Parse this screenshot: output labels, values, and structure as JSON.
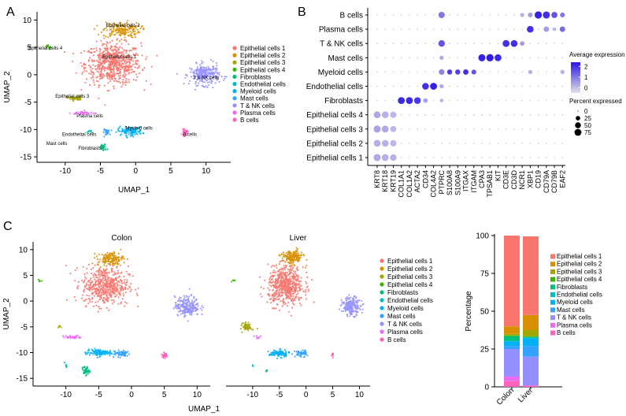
{
  "panel_labels": [
    "A",
    "B",
    "C"
  ],
  "colors": {
    "Epithelial cells 1": "#f8766d",
    "Epithelial cells 2": "#d89000",
    "Epithelial cells 3": "#a3a500",
    "Epithelial cells 4": "#39b600",
    "Fibroblasts": "#00bf7d",
    "Endothelial cells": "#00bfc4",
    "Myeloid cells": "#00b0f6",
    "Mast cells": "#35a2ff",
    "T & NK cells": "#9590ff",
    "Plasma cells": "#e76bf3",
    "B cells": "#ff62bc"
  },
  "chart_data": [
    {
      "type": "scatter",
      "panel": "A",
      "xlabel": "UMAP_1",
      "ylabel": "UMAP_2",
      "xlim": [
        -14,
        13.5
      ],
      "ylim": [
        -16,
        11.5
      ],
      "xticks": [
        -10,
        -5,
        0,
        5,
        10
      ],
      "yticks": [
        -15,
        -10,
        -5,
        0,
        5,
        10
      ],
      "legend": [
        "Epithelial cells 1",
        "Epithelial cells 2",
        "Epithelial cells 3",
        "Epithelial cells 4",
        "Fibroblasts",
        "Endothelial cells",
        "Myeloid cells",
        "Mast cells",
        "T & NK cells",
        "Plasma cells",
        "B cells"
      ],
      "cluster_labels": [
        {
          "text": "Epithelial cells 2",
          "x": -1.8,
          "y": 8.8
        },
        {
          "text": "Epithelial cells 4",
          "x": -12.8,
          "y": 4.6
        },
        {
          "text": "Epithelial cells 1",
          "x": -2.3,
          "y": 3.0
        },
        {
          "text": "T & NK cells",
          "x": 10.0,
          "y": -0.8
        },
        {
          "text": "Epithelial cells 3",
          "x": -9.0,
          "y": -4.2
        },
        {
          "text": "Plasma cells",
          "x": -6.5,
          "y": -7.8
        },
        {
          "text": "Myeloid cells",
          "x": 0.5,
          "y": -10.0
        },
        {
          "text": "Endothelial cells",
          "x": -8.0,
          "y": -11.2
        },
        {
          "text": "B cells",
          "x": 7.7,
          "y": -11.2
        },
        {
          "text": "Mast cells",
          "x": -11.2,
          "y": -12.8
        },
        {
          "text": "Fibroblasts",
          "x": -6.5,
          "y": -13.7
        }
      ],
      "clusters": [
        {
          "name": "Epithelial cells 1",
          "cx": -3.2,
          "cy": 2.0,
          "sx": 3.6,
          "sy": 3.4,
          "n": 650
        },
        {
          "name": "Epithelial cells 2",
          "cx": -2.0,
          "cy": 8.2,
          "sx": 2.4,
          "sy": 1.3,
          "n": 170
        },
        {
          "name": "Epithelial cells 3",
          "cx": -8.6,
          "cy": -4.3,
          "sx": 1.0,
          "sy": 0.4,
          "n": 45
        },
        {
          "name": "Epithelial cells 4",
          "cx": -12.3,
          "cy": 5.0,
          "sx": 0.3,
          "sy": 0.4,
          "n": 12
        },
        {
          "name": "Fibroblasts",
          "cx": -4.6,
          "cy": -13.3,
          "sx": 0.5,
          "sy": 0.6,
          "n": 35
        },
        {
          "name": "Endothelial cells",
          "cx": -6.5,
          "cy": -10.3,
          "sx": 0.3,
          "sy": 0.3,
          "n": 8
        },
        {
          "name": "Myeloid cells",
          "cx": -0.8,
          "cy": -10.3,
          "sx": 1.6,
          "sy": 0.7,
          "n": 120
        },
        {
          "name": "Mast cells",
          "cx": -4.0,
          "cy": -10.5,
          "sx": 0.6,
          "sy": 0.5,
          "n": 25
        },
        {
          "name": "T & NK cells",
          "cx": 9.8,
          "cy": 0.0,
          "sx": 1.9,
          "sy": 1.7,
          "n": 260
        },
        {
          "name": "Plasma cells",
          "cx": -7.5,
          "cy": -7.0,
          "sx": 1.5,
          "sy": 0.35,
          "n": 40
        },
        {
          "name": "B cells",
          "cx": 7.0,
          "cy": -10.6,
          "sx": 0.35,
          "sy": 0.5,
          "n": 30
        }
      ]
    },
    {
      "type": "dotplot",
      "panel": "B",
      "genes": [
        "KRT8",
        "KRT18",
        "KRT19",
        "COL1A1",
        "COL1A2",
        "ACTA2",
        "CD34",
        "COL4A2",
        "PTPRC",
        "S100A8",
        "S100A9",
        "ITGAX",
        "ITGAM",
        "CPA3",
        "TPSAB1",
        "KIT",
        "CD3E",
        "CD3D",
        "NCR1",
        "XBP1",
        "CD19",
        "CD79A",
        "CD79B",
        "EAF2"
      ],
      "cell_types": [
        "B cells",
        "Plasma cells",
        "T & NK cells",
        "Mast cells",
        "Myeloid cells",
        "Endothelial cells",
        "Fibroblasts",
        "Epithelial cells 4",
        "Epithelial cells 3",
        "Epithelial cells 2",
        "Epithelial cells 1"
      ],
      "dots": {
        "B cells": [
          [
            8,
            60,
            1.0
          ],
          [
            18,
            20,
            0.2
          ],
          [
            19,
            30,
            0.5
          ],
          [
            20,
            85,
            2.2
          ],
          [
            21,
            80,
            2.0
          ],
          [
            22,
            55,
            1.5
          ],
          [
            23,
            30,
            1.0
          ]
        ],
        "Plasma cells": [
          [
            19,
            70,
            2.0
          ],
          [
            21,
            40,
            0.5
          ],
          [
            22,
            15,
            0.1
          ],
          [
            23,
            40,
            1.2
          ]
        ],
        "T & NK cells": [
          [
            8,
            65,
            1.5
          ],
          [
            16,
            75,
            2.0
          ],
          [
            17,
            70,
            2.0
          ],
          [
            18,
            25,
            0.5
          ]
        ],
        "Mast cells": [
          [
            8,
            20,
            0.3
          ],
          [
            13,
            80,
            2.2
          ],
          [
            14,
            85,
            2.3
          ],
          [
            15,
            75,
            2.1
          ]
        ],
        "Myeloid cells": [
          [
            8,
            45,
            0.8
          ],
          [
            9,
            35,
            1.8
          ],
          [
            10,
            35,
            1.8
          ],
          [
            11,
            40,
            2.0
          ],
          [
            12,
            30,
            1.5
          ],
          [
            19,
            20,
            0.2
          ],
          [
            23,
            20,
            0.2
          ]
        ],
        "Endothelial cells": [
          [
            6,
            70,
            2.0
          ],
          [
            7,
            75,
            2.2
          ],
          [
            8,
            20,
            0.3
          ]
        ],
        "Fibroblasts": [
          [
            3,
            75,
            2.1
          ],
          [
            4,
            75,
            2.1
          ],
          [
            5,
            70,
            1.9
          ],
          [
            6,
            25,
            0.4
          ],
          [
            8,
            15,
            0.1
          ]
        ],
        "Epithelial cells 4": [
          [
            0,
            75,
            0.3
          ],
          [
            1,
            70,
            0.2
          ],
          [
            2,
            60,
            0.1
          ]
        ],
        "Epithelial cells 3": [
          [
            0,
            80,
            0.4
          ],
          [
            1,
            75,
            0.3
          ],
          [
            2,
            55,
            0.1
          ]
        ],
        "Epithelial cells 2": [
          [
            0,
            75,
            0.2
          ],
          [
            1,
            70,
            0.2
          ],
          [
            2,
            60,
            0.1
          ]
        ],
        "Epithelial cells 1": [
          [
            0,
            80,
            0.3
          ],
          [
            1,
            75,
            0.2
          ],
          [
            2,
            65,
            0.2
          ]
        ]
      },
      "color_legend_title": "Average expression",
      "color_ticks": [
        2,
        1,
        0
      ],
      "color_range": [
        -0.5,
        2.4
      ],
      "size_legend_title": "Percent expressed",
      "size_values": [
        0,
        25,
        50,
        75
      ]
    },
    {
      "type": "scatter",
      "panel": "C-left",
      "title": "Colon",
      "ylabel": "UMAP_2",
      "xlim": [
        -15,
        12
      ],
      "ylim": [
        -16.5,
        11.5
      ],
      "xticks": [
        -10,
        -5,
        0,
        5,
        10
      ],
      "yticks": [
        -15,
        -10,
        -5,
        0,
        5,
        10
      ],
      "clusters": [
        {
          "name": "Epithelial cells 1",
          "cx": -4.0,
          "cy": 3.0,
          "sx": 3.2,
          "sy": 3.4,
          "n": 520
        },
        {
          "name": "Epithelial cells 2",
          "cx": -3.2,
          "cy": 8.2,
          "sx": 1.8,
          "sy": 1.2,
          "n": 140
        },
        {
          "name": "Epithelial cells 3",
          "cx": -11.0,
          "cy": -5.0,
          "sx": 0.3,
          "sy": 0.3,
          "n": 6
        },
        {
          "name": "Epithelial cells 4",
          "cx": -14.0,
          "cy": 4.0,
          "sx": 0.3,
          "sy": 0.3,
          "n": 6
        },
        {
          "name": "Fibroblasts",
          "cx": -7.0,
          "cy": -13.5,
          "sx": 0.5,
          "sy": 0.8,
          "n": 40
        },
        {
          "name": "Endothelial cells",
          "cx": -10.0,
          "cy": -12.5,
          "sx": 0.2,
          "sy": 0.3,
          "n": 6
        },
        {
          "name": "Myeloid cells",
          "cx": -5.0,
          "cy": -10.0,
          "sx": 1.8,
          "sy": 0.6,
          "n": 110
        },
        {
          "name": "Mast cells",
          "cx": -1.5,
          "cy": -10.2,
          "sx": 1.2,
          "sy": 0.6,
          "n": 55
        },
        {
          "name": "T & NK cells",
          "cx": 8.5,
          "cy": -1.0,
          "sx": 1.7,
          "sy": 1.7,
          "n": 220
        },
        {
          "name": "Plasma cells",
          "cx": -9.0,
          "cy": -7.0,
          "sx": 1.3,
          "sy": 0.3,
          "n": 35
        },
        {
          "name": "B cells",
          "cx": 5.0,
          "cy": -10.5,
          "sx": 0.3,
          "sy": 0.4,
          "n": 35
        }
      ]
    },
    {
      "type": "scatter",
      "panel": "C-right",
      "title": "Liver",
      "xlabel": "UMAP_1",
      "xlim": [
        -15,
        12
      ],
      "ylim": [
        -16.5,
        11.5
      ],
      "xticks": [
        -10,
        -5,
        0,
        5,
        10
      ],
      "legend": [
        "Epithelial cells 1",
        "Epithelial cells 2",
        "Epithelial cells 3",
        "Epithelial cells 4",
        "Fibroblasts",
        "Endothelial cells",
        "Myeloid cells",
        "Mast cells",
        "T & NK cells",
        "Plasma cells",
        "B cells"
      ],
      "clusters": [
        {
          "name": "Epithelial cells 1",
          "cx": -3.8,
          "cy": 3.0,
          "sx": 3.0,
          "sy": 3.4,
          "n": 560
        },
        {
          "name": "Epithelial cells 2",
          "cx": -2.6,
          "cy": 8.5,
          "sx": 1.8,
          "sy": 1.2,
          "n": 160
        },
        {
          "name": "Epithelial cells 3",
          "cx": -11.0,
          "cy": -5.0,
          "sx": 0.8,
          "sy": 0.7,
          "n": 55
        },
        {
          "name": "Epithelial cells 4",
          "cx": -13.5,
          "cy": 4.0,
          "sx": 0.3,
          "sy": 0.3,
          "n": 5
        },
        {
          "name": "Fibroblasts",
          "cx": -7.5,
          "cy": -13.5,
          "sx": 0.3,
          "sy": 0.3,
          "n": 5
        },
        {
          "name": "Endothelial cells",
          "cx": -10.0,
          "cy": -12.5,
          "sx": 0.2,
          "sy": 0.3,
          "n": 4
        },
        {
          "name": "Myeloid cells",
          "cx": -5.0,
          "cy": -10.2,
          "sx": 1.7,
          "sy": 0.6,
          "n": 110
        },
        {
          "name": "Mast cells",
          "cx": -1.0,
          "cy": -10.2,
          "sx": 1.0,
          "sy": 0.6,
          "n": 50
        },
        {
          "name": "T & NK cells",
          "cx": 8.5,
          "cy": -1.0,
          "sx": 1.6,
          "sy": 1.6,
          "n": 180
        },
        {
          "name": "Plasma cells",
          "cx": -9.0,
          "cy": -7.0,
          "sx": 0.6,
          "sy": 0.3,
          "n": 8
        },
        {
          "name": "B cells",
          "cx": 5.0,
          "cy": -10.5,
          "sx": 0.3,
          "sy": 0.4,
          "n": 8
        }
      ]
    },
    {
      "type": "bar",
      "stacked": true,
      "panel": "C-bar",
      "ylabel": "Percentage",
      "ylim": [
        0,
        100
      ],
      "yticks": [
        0,
        25,
        50,
        75,
        100
      ],
      "categories": [
        "Colon",
        "Liver"
      ],
      "series_order_bottom_to_top": [
        "B cells",
        "Plasma cells",
        "T & NK cells",
        "Mast cells",
        "Myeloid cells",
        "Endothelial cells",
        "Fibroblasts",
        "Epithelial cells 4",
        "Epithelial cells 3",
        "Epithelial cells 2",
        "Epithelial cells 1"
      ],
      "series": [
        {
          "name": "Epithelial cells 1",
          "values": [
            60,
            52
          ]
        },
        {
          "name": "Epithelial cells 2",
          "values": [
            5,
            10
          ]
        },
        {
          "name": "Epithelial cells 3",
          "values": [
            1,
            4
          ]
        },
        {
          "name": "Epithelial cells 4",
          "values": [
            0.5,
            0.5
          ]
        },
        {
          "name": "Fibroblasts",
          "values": [
            3,
            0.5
          ]
        },
        {
          "name": "Endothelial cells",
          "values": [
            0.5,
            0.5
          ]
        },
        {
          "name": "Myeloid cells",
          "values": [
            3,
            5
          ]
        },
        {
          "name": "Mast cells",
          "values": [
            2,
            7
          ]
        },
        {
          "name": "T & NK cells",
          "values": [
            18,
            19
          ]
        },
        {
          "name": "Plasma cells",
          "values": [
            3,
            0.5
          ]
        },
        {
          "name": "B cells",
          "values": [
            4,
            0.5
          ]
        }
      ],
      "legend": [
        "Epithelial cells 1",
        "Epithelial cells 2",
        "Epithelial cells 3",
        "Epithelial cells 4",
        "Fibroblasts",
        "Endothelial cells",
        "Myeloid cells",
        "Mast cells",
        "T & NK cells",
        "Plasma cells",
        "B cells"
      ]
    }
  ]
}
